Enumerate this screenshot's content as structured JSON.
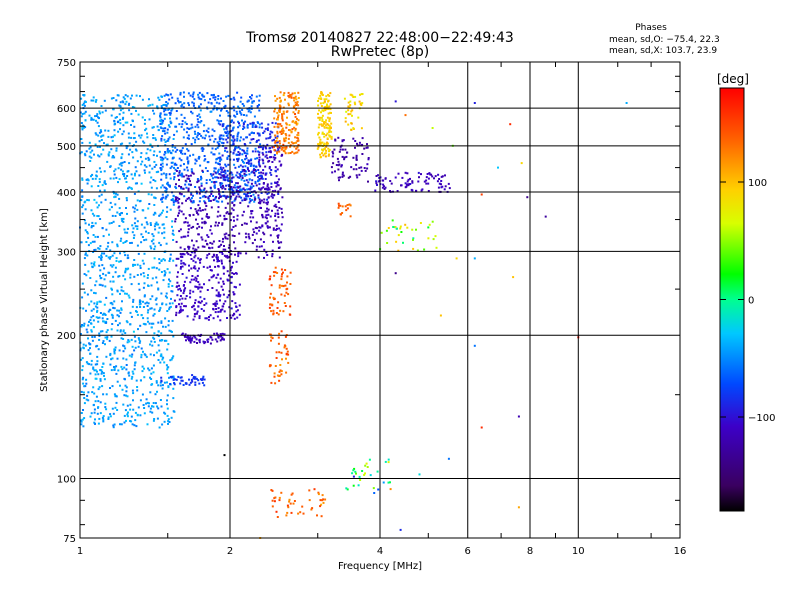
{
  "chart_data": {
    "type": "scatter",
    "title": "Tromsø 20140827 22:48:00−22:49:43",
    "subtitle": "RwPretec (8p)",
    "xlabel": "Frequency [MHz]",
    "ylabel": "Stationary phase Virtual Height [km]",
    "x_scale": "log",
    "y_scale": "log",
    "xlim": [
      1,
      16
    ],
    "ylim": [
      75,
      750
    ],
    "x_ticks": [
      1,
      2,
      4,
      6,
      8,
      10,
      16
    ],
    "x_tick_labels": [
      "1",
      "2",
      "4",
      "6",
      "8",
      "10",
      "16"
    ],
    "x_minor_ticks": [
      1.5,
      3,
      5,
      7,
      9,
      12,
      14
    ],
    "y_ticks": [
      75,
      100,
      200,
      300,
      400,
      500,
      600,
      750
    ],
    "y_tick_labels": [
      "75",
      "100",
      "200",
      "300",
      "400",
      "500",
      "600",
      "750"
    ],
    "y_minor_ticks": [
      80,
      90,
      150,
      250,
      350,
      450,
      550,
      650,
      700
    ],
    "grid": true,
    "legend": {
      "title": "Phases",
      "line1": "mean, sd,O: −75.4, 22.3",
      "line2": "mean, sd,X: 103.7, 23.9"
    },
    "colorbar": {
      "label": "[deg]",
      "range": [
        -180,
        180
      ],
      "ticks": [
        100,
        0,
        -100
      ],
      "tick_labels": [
        "100",
        "0",
        "−100"
      ],
      "colormap": "rainbow (black-purple-blue-cyan-green-yellow-red)"
    },
    "clusters": [
      {
        "name": "low-freq cyan cloud",
        "fmin": 1.0,
        "fmax": 1.55,
        "hmin": 128,
        "hmax": 640,
        "phase": -45,
        "spread": 14,
        "count": 1300
      },
      {
        "name": "cyan-blue cloud upper",
        "fmin": 1.45,
        "fmax": 2.3,
        "hmin": 380,
        "hmax": 650,
        "phase": -65,
        "spread": 14,
        "count": 650
      },
      {
        "name": "blue layer 380-560",
        "fmin": 1.9,
        "fmax": 2.5,
        "hmin": 380,
        "hmax": 560,
        "phase": -90,
        "spread": 10,
        "count": 220
      },
      {
        "name": "purple-blue 300-440",
        "fmin": 1.55,
        "fmax": 2.55,
        "hmin": 290,
        "hmax": 445,
        "phase": -120,
        "spread": 12,
        "count": 380
      },
      {
        "name": "blue 215-300",
        "fmin": 1.55,
        "fmax": 2.1,
        "hmin": 215,
        "hmax": 300,
        "phase": -110,
        "spread": 10,
        "count": 260
      },
      {
        "name": "blue band 195",
        "fmin": 1.6,
        "fmax": 1.95,
        "hmin": 192,
        "hmax": 202,
        "phase": -115,
        "spread": 8,
        "count": 60
      },
      {
        "name": "blue band 160",
        "fmin": 1.45,
        "fmax": 1.78,
        "hmin": 157,
        "hmax": 165,
        "phase": -85,
        "spread": 8,
        "count": 45
      },
      {
        "name": "blue trace 2.3 MHz",
        "fmin": 2.28,
        "fmax": 2.55,
        "hmin": 330,
        "hmax": 500,
        "phase": -115,
        "spread": 8,
        "count": 90
      },
      {
        "name": "orange trace top",
        "fmin": 2.45,
        "fmax": 2.75,
        "hmin": 480,
        "hmax": 650,
        "phase": 125,
        "spread": 22,
        "count": 180
      },
      {
        "name": "orange trace mid",
        "fmin": 2.4,
        "fmax": 2.65,
        "hmin": 220,
        "hmax": 280,
        "phase": 140,
        "spread": 20,
        "count": 55
      },
      {
        "name": "orange trace low",
        "fmin": 2.4,
        "fmax": 2.62,
        "hmin": 158,
        "hmax": 205,
        "phase": 135,
        "spread": 20,
        "count": 45
      },
      {
        "name": "yellow trace 3 MHz",
        "fmin": 3.0,
        "fmax": 3.2,
        "hmin": 470,
        "hmax": 650,
        "phase": 95,
        "spread": 18,
        "count": 140
      },
      {
        "name": "yellow trace 3.4 MHz",
        "fmin": 3.4,
        "fmax": 3.7,
        "hmin": 540,
        "hmax": 650,
        "phase": 90,
        "spread": 25,
        "count": 40
      },
      {
        "name": "purple trace 3.2-3.8",
        "fmin": 3.2,
        "fmax": 3.8,
        "hmin": 420,
        "hmax": 520,
        "phase": -125,
        "spread": 10,
        "count": 80
      },
      {
        "name": "purple-blue 4-5.5",
        "fmin": 3.9,
        "fmax": 5.6,
        "hmin": 400,
        "hmax": 440,
        "phase": -115,
        "spread": 15,
        "count": 90
      },
      {
        "name": "orange 3.3",
        "fmin": 3.3,
        "fmax": 3.5,
        "hmin": 355,
        "hmax": 380,
        "phase": 135,
        "spread": 15,
        "count": 15
      },
      {
        "name": "mixed 4-5",
        "fmin": 4.0,
        "fmax": 5.2,
        "hmin": 300,
        "hmax": 350,
        "phase": 60,
        "spread": 70,
        "count": 35
      },
      {
        "name": "orange E-region",
        "fmin": 2.4,
        "fmax": 3.2,
        "hmin": 83,
        "hmax": 95,
        "phase": 135,
        "spread": 25,
        "count": 45
      },
      {
        "name": "mixed E-region",
        "fmin": 3.4,
        "fmax": 4.2,
        "hmin": 93,
        "hmax": 110,
        "phase": 0,
        "spread": 80,
        "count": 30
      }
    ],
    "sparse_points": [
      [
        4.3,
        620,
        -100
      ],
      [
        6.2,
        615,
        -95
      ],
      [
        12.5,
        615,
        -40
      ],
      [
        4.5,
        580,
        130
      ],
      [
        5.1,
        545,
        60
      ],
      [
        7.3,
        555,
        160
      ],
      [
        7.7,
        460,
        90
      ],
      [
        8.6,
        355,
        -130
      ],
      [
        6.4,
        395,
        150
      ],
      [
        7.9,
        390,
        -140
      ],
      [
        4.3,
        270,
        -140
      ],
      [
        5.3,
        220,
        100
      ],
      [
        6.2,
        290,
        -40
      ],
      [
        6.2,
        190,
        -60
      ],
      [
        7.6,
        135,
        -120
      ],
      [
        6.4,
        128,
        160
      ],
      [
        4.8,
        102,
        -20
      ],
      [
        5.5,
        110,
        -60
      ],
      [
        10.0,
        198,
        170
      ],
      [
        7.6,
        87,
        110
      ],
      [
        5.7,
        290,
        90
      ],
      [
        4.2,
        95,
        120
      ],
      [
        4.4,
        78,
        -90
      ],
      [
        2.3,
        75,
        110
      ],
      [
        1.95,
        112,
        -180
      ],
      [
        7.4,
        265,
        100
      ],
      [
        6.9,
        450,
        -30
      ],
      [
        5.6,
        500,
        40
      ]
    ]
  }
}
